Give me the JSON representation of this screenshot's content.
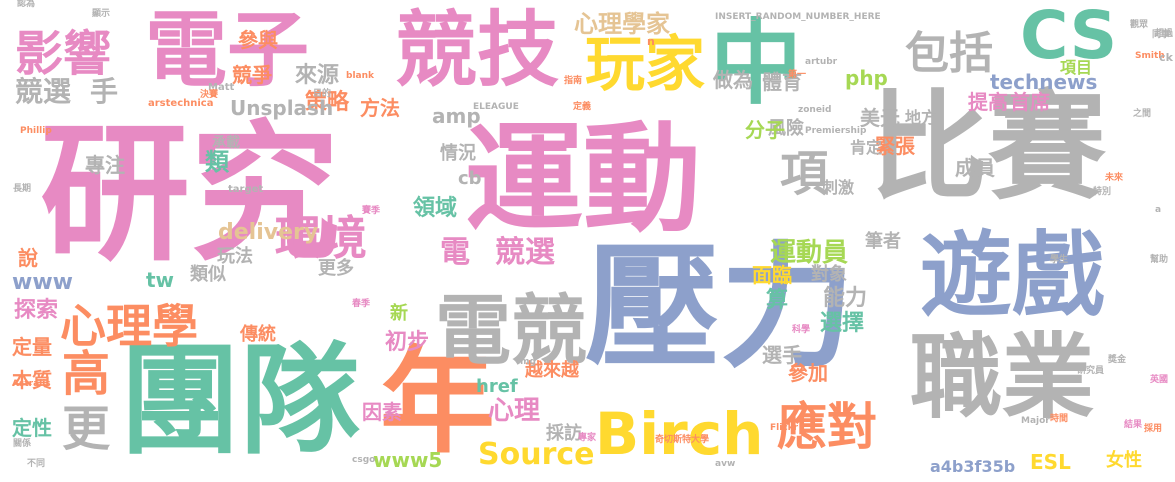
{
  "palette": {
    "pink": "#e78ac3",
    "blue": "#8da0cb",
    "green": "#66c2a5",
    "orange": "#fc8d62",
    "yellow": "#ffd92f",
    "tan": "#e5c494",
    "gray": "#b3b3b3",
    "lime": "#a6d854"
  },
  "words": [
    {
      "text": "研究",
      "color": "pink",
      "size": "xxl"
    },
    {
      "text": "運動",
      "color": "pink",
      "size": "xl"
    },
    {
      "text": "比賽",
      "color": "gray",
      "size": "xl"
    },
    {
      "text": "壓力",
      "color": "blue",
      "size": "xl"
    },
    {
      "text": "團隊",
      "color": "green",
      "size": "xl"
    },
    {
      "text": "年",
      "color": "orange",
      "size": "xl"
    },
    {
      "text": "遊戲",
      "color": "blue",
      "size": "l"
    },
    {
      "text": "職業",
      "color": "gray",
      "size": "l"
    },
    {
      "text": "中",
      "color": "green",
      "size": "l"
    },
    {
      "text": "電子",
      "color": "pink",
      "size": "l"
    },
    {
      "text": "競技",
      "color": "pink",
      "size": "l"
    },
    {
      "text": "電競",
      "color": "gray",
      "size": "l"
    },
    {
      "text": "CS",
      "color": "green",
      "size": "l"
    },
    {
      "text": "Birch",
      "color": "yellow",
      "size": "m"
    },
    {
      "text": "玩家",
      "color": "yellow",
      "size": "m"
    },
    {
      "text": "影響",
      "color": "pink",
      "size": "m"
    },
    {
      "text": "心理學",
      "color": "orange",
      "size": "m"
    },
    {
      "text": "環境",
      "color": "pink",
      "size": "m"
    },
    {
      "text": "包括",
      "color": "gray",
      "size": "m"
    },
    {
      "text": "項",
      "color": "gray",
      "size": "m"
    },
    {
      "text": "高",
      "color": "orange",
      "size": "m"
    },
    {
      "text": "更",
      "color": "gray",
      "size": "m"
    },
    {
      "text": "應對",
      "color": "orange",
      "size": "m"
    },
    {
      "text": "競選",
      "color": "gray",
      "size": "s"
    },
    {
      "text": "手",
      "color": "gray",
      "size": "s"
    },
    {
      "text": "電",
      "color": "pink",
      "size": "s"
    },
    {
      "text": "競選",
      "color": "pink",
      "size": "s"
    },
    {
      "text": "心理學家",
      "color": "tan",
      "size": "s"
    },
    {
      "text": "Source",
      "color": "yellow",
      "size": "s"
    },
    {
      "text": "運動員",
      "color": "lime",
      "size": "s"
    },
    {
      "text": "來源",
      "color": "gray",
      "size": "s"
    },
    {
      "text": "策略",
      "color": "orange",
      "size": "s"
    },
    {
      "text": "參與",
      "color": "orange",
      "size": "s"
    },
    {
      "text": "競爭",
      "color": "orange",
      "size": "s"
    },
    {
      "text": "做為",
      "color": "gray",
      "size": "s"
    },
    {
      "text": "體育",
      "color": "gray",
      "size": "s"
    },
    {
      "text": "php",
      "color": "lime",
      "size": "s"
    },
    {
      "text": "項目",
      "color": "lime",
      "size": "s"
    },
    {
      "text": "technews",
      "color": "blue",
      "size": "s"
    },
    {
      "text": "首席",
      "color": "pink",
      "size": "s"
    },
    {
      "text": "提高",
      "color": "pink",
      "size": "s"
    },
    {
      "text": "地方",
      "color": "gray",
      "size": "s"
    },
    {
      "text": "Unsplash",
      "color": "gray",
      "size": "s"
    },
    {
      "text": "方法",
      "color": "orange",
      "size": "s"
    },
    {
      "text": "amp",
      "color": "gray",
      "size": "s"
    },
    {
      "text": "風險",
      "color": "gray",
      "size": "s"
    },
    {
      "text": "美元",
      "color": "gray",
      "size": "s"
    },
    {
      "text": "緊張",
      "color": "orange",
      "size": "s"
    },
    {
      "text": "分子",
      "color": "lime",
      "size": "s"
    },
    {
      "text": "肯定",
      "color": "gray",
      "size": "s"
    },
    {
      "text": "成員",
      "color": "gray",
      "size": "s"
    },
    {
      "text": "專注",
      "color": "gray",
      "size": "s"
    },
    {
      "text": "類",
      "color": "green",
      "size": "s"
    },
    {
      "text": "承載",
      "color": "gray",
      "size": "s"
    },
    {
      "text": "情況",
      "color": "gray",
      "size": "s"
    },
    {
      "text": "cb",
      "color": "gray",
      "size": "s"
    },
    {
      "text": "刺激",
      "color": "gray",
      "size": "s"
    },
    {
      "text": "領域",
      "color": "green",
      "size": "s"
    },
    {
      "text": "delivery",
      "color": "tan",
      "size": "s"
    },
    {
      "text": "玩法",
      "color": "gray",
      "size": "s"
    },
    {
      "text": "類似",
      "color": "gray",
      "size": "s"
    },
    {
      "text": "tw",
      "color": "green",
      "size": "s"
    },
    {
      "text": "更多",
      "color": "gray",
      "size": "s"
    },
    {
      "text": "面臨",
      "color": "yellow",
      "size": "s"
    },
    {
      "text": "對象",
      "color": "gray",
      "size": "s"
    },
    {
      "text": "筆者",
      "color": "gray",
      "size": "s"
    },
    {
      "text": "www",
      "color": "blue",
      "size": "s"
    },
    {
      "text": "說",
      "color": "orange",
      "size": "s"
    },
    {
      "text": "探索",
      "color": "pink",
      "size": "s"
    },
    {
      "text": "傳統",
      "color": "orange",
      "size": "s"
    },
    {
      "text": "新",
      "color": "lime",
      "size": "s"
    },
    {
      "text": "初步",
      "color": "pink",
      "size": "s"
    },
    {
      "text": "算",
      "color": "green",
      "size": "s"
    },
    {
      "text": "能力",
      "color": "gray",
      "size": "s"
    },
    {
      "text": "選擇",
      "color": "green",
      "size": "s"
    },
    {
      "text": "選手",
      "color": "gray",
      "size": "s"
    },
    {
      "text": "參加",
      "color": "orange",
      "size": "s"
    },
    {
      "text": "定量",
      "color": "orange",
      "size": "s"
    },
    {
      "text": "本質",
      "color": "orange",
      "size": "s"
    },
    {
      "text": "越來越",
      "color": "orange",
      "size": "s"
    },
    {
      "text": "href",
      "color": "green",
      "size": "s"
    },
    {
      "text": "心理",
      "color": "pink",
      "size": "s"
    },
    {
      "text": "因素",
      "color": "pink",
      "size": "s"
    },
    {
      "text": "定性",
      "color": "green",
      "size": "s"
    },
    {
      "text": "採訪",
      "color": "gray",
      "size": "s"
    },
    {
      "text": "www5",
      "color": "lime",
      "size": "s"
    },
    {
      "text": "a4b3f35b",
      "color": "blue",
      "size": "s"
    },
    {
      "text": "ESL",
      "color": "yellow",
      "size": "s"
    },
    {
      "text": "女性",
      "color": "yellow",
      "size": "s"
    },
    {
      "text": "INSERT_RANDOM_NUMBER_HERE",
      "color": "gray",
      "size": "xs"
    },
    {
      "text": "blank",
      "color": "orange",
      "size": "xs"
    },
    {
      "text": "arstechnica",
      "color": "orange",
      "size": "xs"
    },
    {
      "text": "Matt",
      "color": "gray",
      "size": "xs"
    },
    {
      "text": "artubr",
      "color": "gray",
      "size": "xs"
    },
    {
      "text": "ELEAGUE",
      "color": "gray",
      "size": "xs"
    },
    {
      "text": "Premiership",
      "color": "gray",
      "size": "xs"
    },
    {
      "text": "zoneid",
      "color": "gray",
      "size": "xs"
    },
    {
      "text": "Astralis",
      "color": "orange",
      "size": "xs"
    },
    {
      "text": "Flickr",
      "color": "orange",
      "size": "xs"
    },
    {
      "text": "Major",
      "color": "gray",
      "size": "xs"
    },
    {
      "text": "Smith",
      "color": "orange",
      "size": "xs"
    },
    {
      "text": "ck",
      "color": "gray",
      "size": "xs"
    },
    {
      "text": "target",
      "color": "gray",
      "size": "xs"
    },
    {
      "text": "img",
      "color": "gray",
      "size": "xs"
    },
    {
      "text": "csgo",
      "color": "gray",
      "size": "xs"
    },
    {
      "text": "avw",
      "color": "gray",
      "size": "xs"
    },
    {
      "text": "Phillip",
      "color": "orange",
      "size": "xs"
    },
    {
      "text": "a",
      "color": "gray",
      "size": "xs"
    },
    {
      "text": "n",
      "color": "orange",
      "size": "xs"
    },
    {
      "text": "奇切斯特大學",
      "color": "orange",
      "size": "xs"
    },
    {
      "text": "研究員",
      "color": "gray",
      "size": "xs"
    },
    {
      "text": "專家",
      "color": "pink",
      "size": "xs"
    },
    {
      "text": "顯示",
      "color": "gray",
      "size": "xs"
    },
    {
      "text": "認為",
      "color": "gray",
      "size": "xs"
    },
    {
      "text": "指南",
      "color": "orange",
      "size": "xs"
    },
    {
      "text": "第一",
      "color": "orange",
      "size": "xs"
    },
    {
      "text": "目的",
      "color": "gray",
      "size": "xs"
    },
    {
      "text": "特別",
      "color": "gray",
      "size": "xs"
    },
    {
      "text": "觀眾",
      "color": "gray",
      "size": "xs"
    },
    {
      "text": "超過",
      "color": "gray",
      "size": "xs"
    },
    {
      "text": "同事",
      "color": "gray",
      "size": "xs"
    },
    {
      "text": "未來",
      "color": "orange",
      "size": "xs"
    },
    {
      "text": "之間",
      "color": "gray",
      "size": "xs"
    },
    {
      "text": "結果",
      "color": "pink",
      "size": "xs"
    },
    {
      "text": "採用",
      "color": "orange",
      "size": "xs"
    },
    {
      "text": "幫助",
      "color": "gray",
      "size": "xs"
    },
    {
      "text": "長期",
      "color": "gray",
      "size": "xs"
    },
    {
      "text": "關係",
      "color": "gray",
      "size": "xs"
    },
    {
      "text": "不同",
      "color": "gray",
      "size": "xs"
    },
    {
      "text": "決賽",
      "color": "orange",
      "size": "xs"
    },
    {
      "text": "定義",
      "color": "orange",
      "size": "xs"
    },
    {
      "text": "獎金",
      "color": "gray",
      "size": "xs"
    },
    {
      "text": "春季",
      "color": "pink",
      "size": "xs"
    },
    {
      "text": "賽季",
      "color": "pink",
      "size": "xs"
    },
    {
      "text": "英國",
      "color": "pink",
      "size": "xs"
    },
    {
      "text": "學生",
      "color": "gray",
      "size": "xs"
    },
    {
      "text": "科學",
      "color": "pink",
      "size": "xs"
    },
    {
      "text": "時間",
      "color": "orange",
      "size": "xs"
    },
    {
      "text": "價值",
      "color": "gray",
      "size": "xs"
    },
    {
      "text": "工作",
      "color": "gray",
      "size": "xs"
    },
    {
      "text": "大型",
      "color": "gray",
      "size": "xs"
    }
  ]
}
